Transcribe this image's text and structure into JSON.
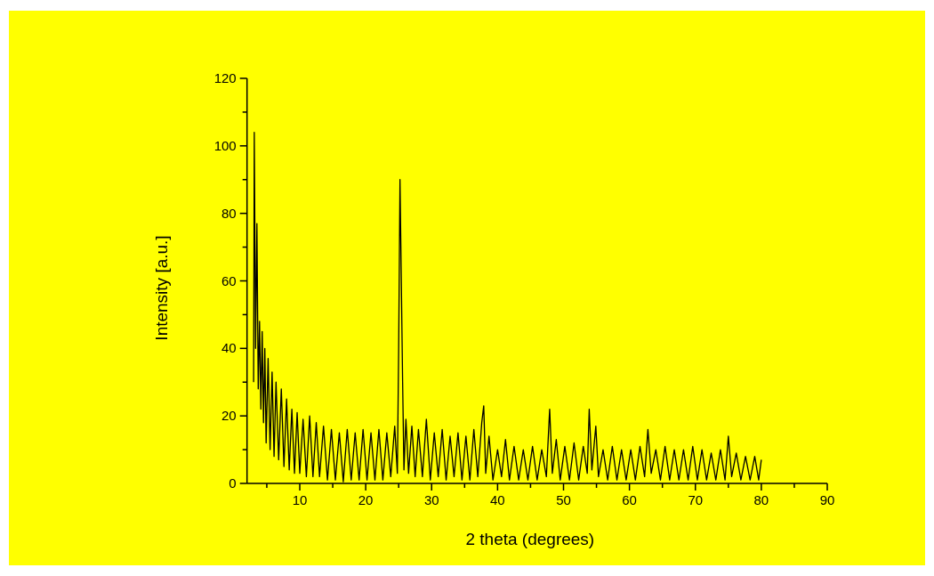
{
  "chart_data": {
    "type": "line",
    "xlabel": "2 theta (degrees)",
    "ylabel": "Intensity [a.u.]",
    "xlim": [
      2,
      90
    ],
    "ylim": [
      0,
      120
    ],
    "xticks": [
      {
        "value": 5,
        "label": null
      },
      10,
      {
        "value": 15,
        "label": null
      },
      20,
      {
        "value": 25,
        "label": null
      },
      30,
      {
        "value": 35,
        "label": null
      },
      40,
      {
        "value": 45,
        "label": null
      },
      50,
      {
        "value": 55,
        "label": null
      },
      60,
      {
        "value": 65,
        "label": null
      },
      70,
      {
        "value": 75,
        "label": null
      },
      80,
      {
        "value": 85,
        "label": null
      },
      90
    ],
    "yticks": [
      0,
      {
        "value": 10,
        "label": null
      },
      20,
      {
        "value": 30,
        "label": null
      },
      40,
      {
        "value": 50,
        "label": null
      },
      60,
      {
        "value": 70,
        "label": null
      },
      80,
      {
        "value": 90,
        "label": null
      },
      100,
      {
        "value": 110,
        "label": null
      },
      120
    ],
    "grid": false,
    "marker": "none",
    "line_style": "solid",
    "series": [
      {
        "color": "#000000",
        "x": [
          3.0,
          3.1,
          3.3,
          3.5,
          3.7,
          3.9,
          4.1,
          4.3,
          4.5,
          4.7,
          4.9,
          5.2,
          5.5,
          5.8,
          6.1,
          6.4,
          6.8,
          7.2,
          7.6,
          8.0,
          8.4,
          8.8,
          9.2,
          9.6,
          10.0,
          10.5,
          11.0,
          11.5,
          12.0,
          12.5,
          13.0,
          13.6,
          14.2,
          14.8,
          15.4,
          16.0,
          16.6,
          17.2,
          17.8,
          18.4,
          19.0,
          19.6,
          20.2,
          20.8,
          21.4,
          22.0,
          22.6,
          23.2,
          23.8,
          24.4,
          24.8,
          25.0,
          25.2,
          25.4,
          25.6,
          25.8,
          26.1,
          26.5,
          27.0,
          27.5,
          28.0,
          28.6,
          29.2,
          29.8,
          30.4,
          31.0,
          31.6,
          32.2,
          32.8,
          33.4,
          34.0,
          34.6,
          35.2,
          35.8,
          36.4,
          37.0,
          37.6,
          37.9,
          38.2,
          38.7,
          39.3,
          40.0,
          40.6,
          41.2,
          41.8,
          42.5,
          43.2,
          43.9,
          44.6,
          45.3,
          46.0,
          46.7,
          47.4,
          47.9,
          48.3,
          48.9,
          49.5,
          50.2,
          50.9,
          51.6,
          52.3,
          53.0,
          53.6,
          53.9,
          54.3,
          54.9,
          55.3,
          56.0,
          56.7,
          57.4,
          58.1,
          58.8,
          59.5,
          60.2,
          60.9,
          61.6,
          62.3,
          62.8,
          63.3,
          64.0,
          64.7,
          65.4,
          66.1,
          66.8,
          67.5,
          68.2,
          68.9,
          69.6,
          70.3,
          71.0,
          71.7,
          72.4,
          73.1,
          73.8,
          74.5,
          75.0,
          75.5,
          76.2,
          76.9,
          77.6,
          78.3,
          79.0,
          79.6,
          80.0
        ],
        "values": [
          30,
          104,
          40,
          77,
          28,
          48,
          22,
          45,
          18,
          40,
          12,
          37,
          10,
          33,
          8,
          30,
          7,
          28,
          5,
          25,
          4,
          22,
          3,
          21,
          3,
          19,
          2,
          20,
          2,
          18,
          2,
          17,
          1,
          16,
          1,
          15,
          0.5,
          16,
          1,
          15,
          1,
          16,
          1,
          15,
          1,
          16,
          1,
          15,
          2,
          17,
          3,
          40,
          90,
          60,
          30,
          4,
          19,
          3,
          17,
          2,
          16,
          2,
          19,
          1,
          15,
          2,
          16,
          1,
          14,
          2,
          15,
          1,
          14,
          1,
          16,
          2,
          18,
          23,
          3,
          14,
          1,
          10,
          2,
          13,
          1,
          11,
          1,
          10,
          1,
          11,
          1,
          10,
          2,
          22,
          3,
          13,
          1,
          11,
          1,
          12,
          1,
          11,
          3,
          22,
          4,
          17,
          2,
          10,
          1,
          11,
          1,
          10,
          1,
          10,
          1,
          11,
          2,
          16,
          3,
          10,
          1,
          11,
          1,
          10,
          1,
          10,
          1,
          11,
          1,
          10,
          1,
          9,
          1,
          10,
          1,
          14,
          2,
          9,
          1,
          8,
          1,
          8,
          1,
          7
        ]
      }
    ]
  }
}
